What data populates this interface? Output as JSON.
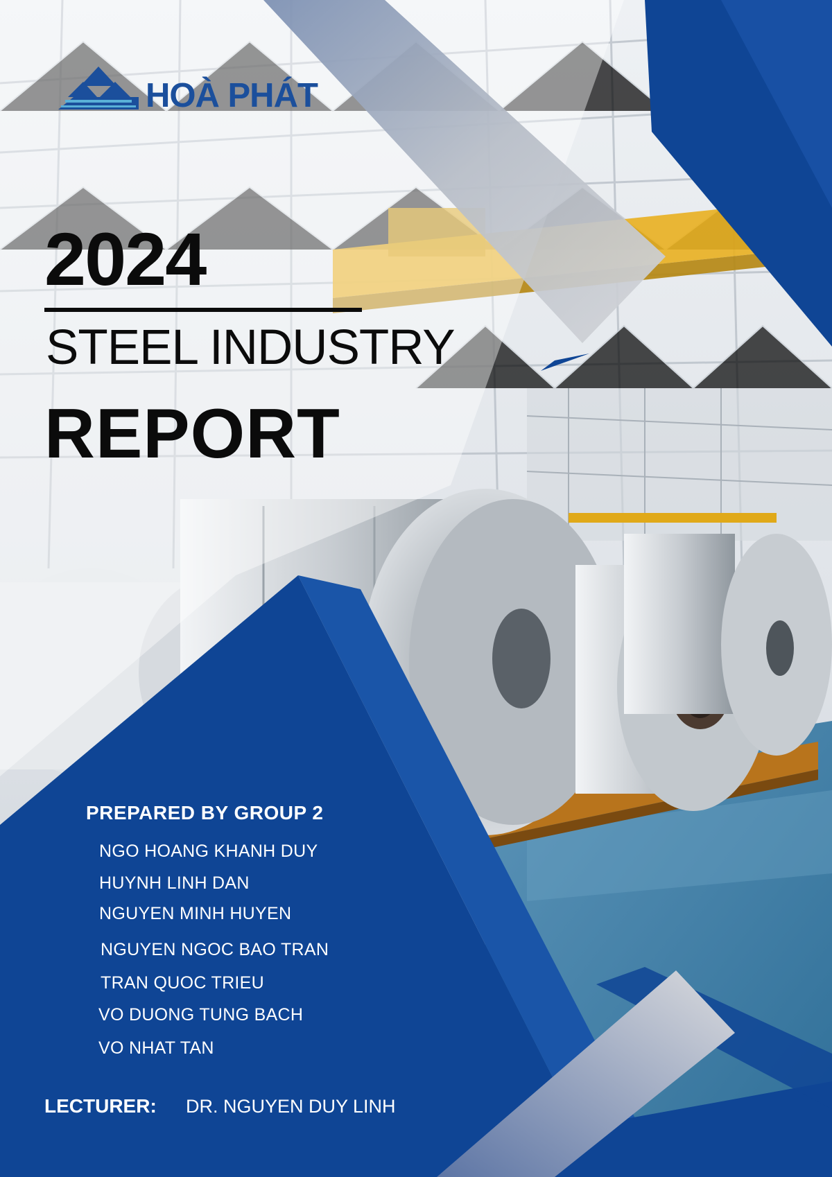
{
  "brand": {
    "logo_text": "HOÀ PHÁT"
  },
  "cover": {
    "year": "2024",
    "subtitle": "STEEL INDUSTRY",
    "report": "REPORT"
  },
  "prepared": {
    "heading": "PREPARED BY GROUP 2",
    "members": [
      "NGO HOANG KHANH DUY",
      "HUYNH LINH DAN",
      "NGUYEN MINH HUYEN",
      "NGUYEN NGOC BAO TRAN",
      "TRAN QUOC TRIEU",
      "VO DUONG TUNG BACH",
      "VO NHAT TAN"
    ]
  },
  "lecturer": {
    "label": "LECTURER:",
    "name": "DR. NGUYEN DUY LINH"
  },
  "colors": {
    "brand_blue": "#1b4f9c",
    "panel_blue": "#0f4595",
    "accent_yellow": "#e9b020"
  }
}
